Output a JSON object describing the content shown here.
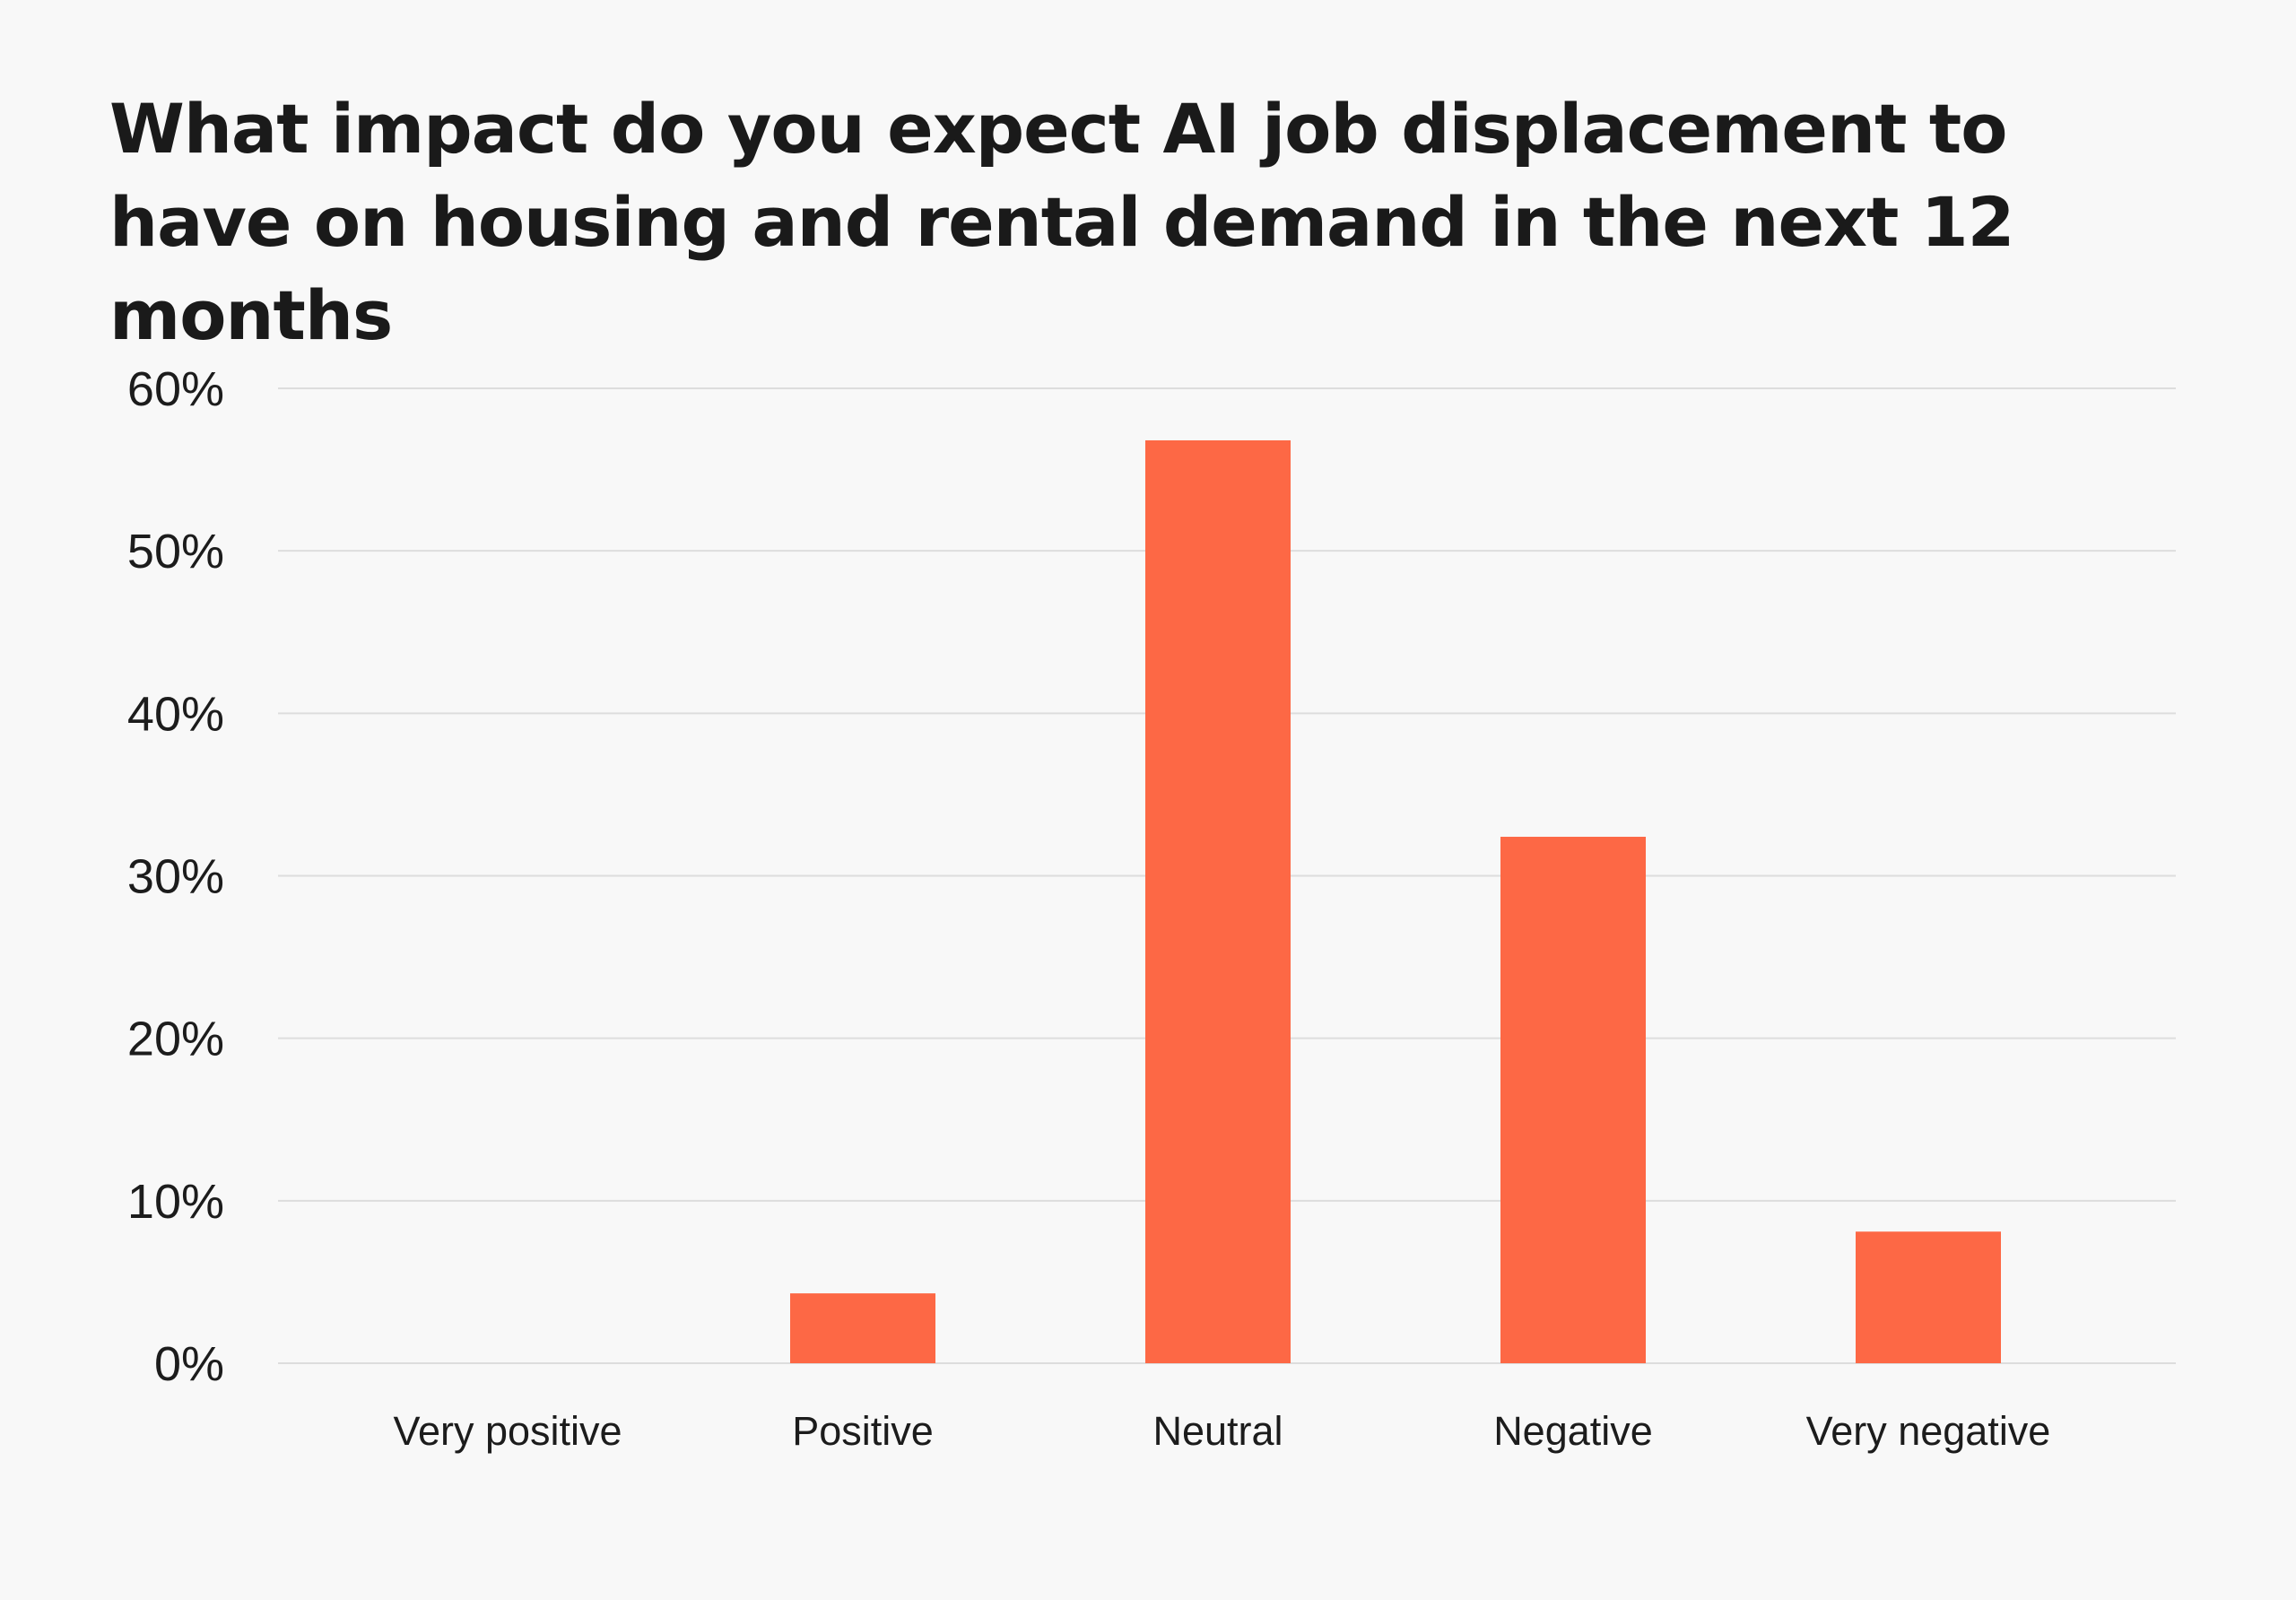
{
  "chart_data": {
    "type": "bar",
    "title": "What impact do you expect AI job displacement to have on housing and rental demand in the next 12 months",
    "categories": [
      "Very positive",
      "Positive",
      "Neutral",
      "Negative",
      "Very negative"
    ],
    "values": [
      0,
      4.3,
      56.8,
      32.4,
      8.1
    ],
    "ylim": [
      0,
      60
    ],
    "yticks": [
      0,
      10,
      20,
      30,
      40,
      50,
      60
    ],
    "ytick_labels": [
      "0%",
      "10%",
      "20%",
      "30%",
      "40%",
      "50%",
      "60%"
    ],
    "xlabel": "",
    "ylabel": "",
    "grid": true,
    "legend": "none",
    "bar_color": "#fd6845",
    "grid_color": "#dddddd",
    "background": "#f8f8f8"
  }
}
